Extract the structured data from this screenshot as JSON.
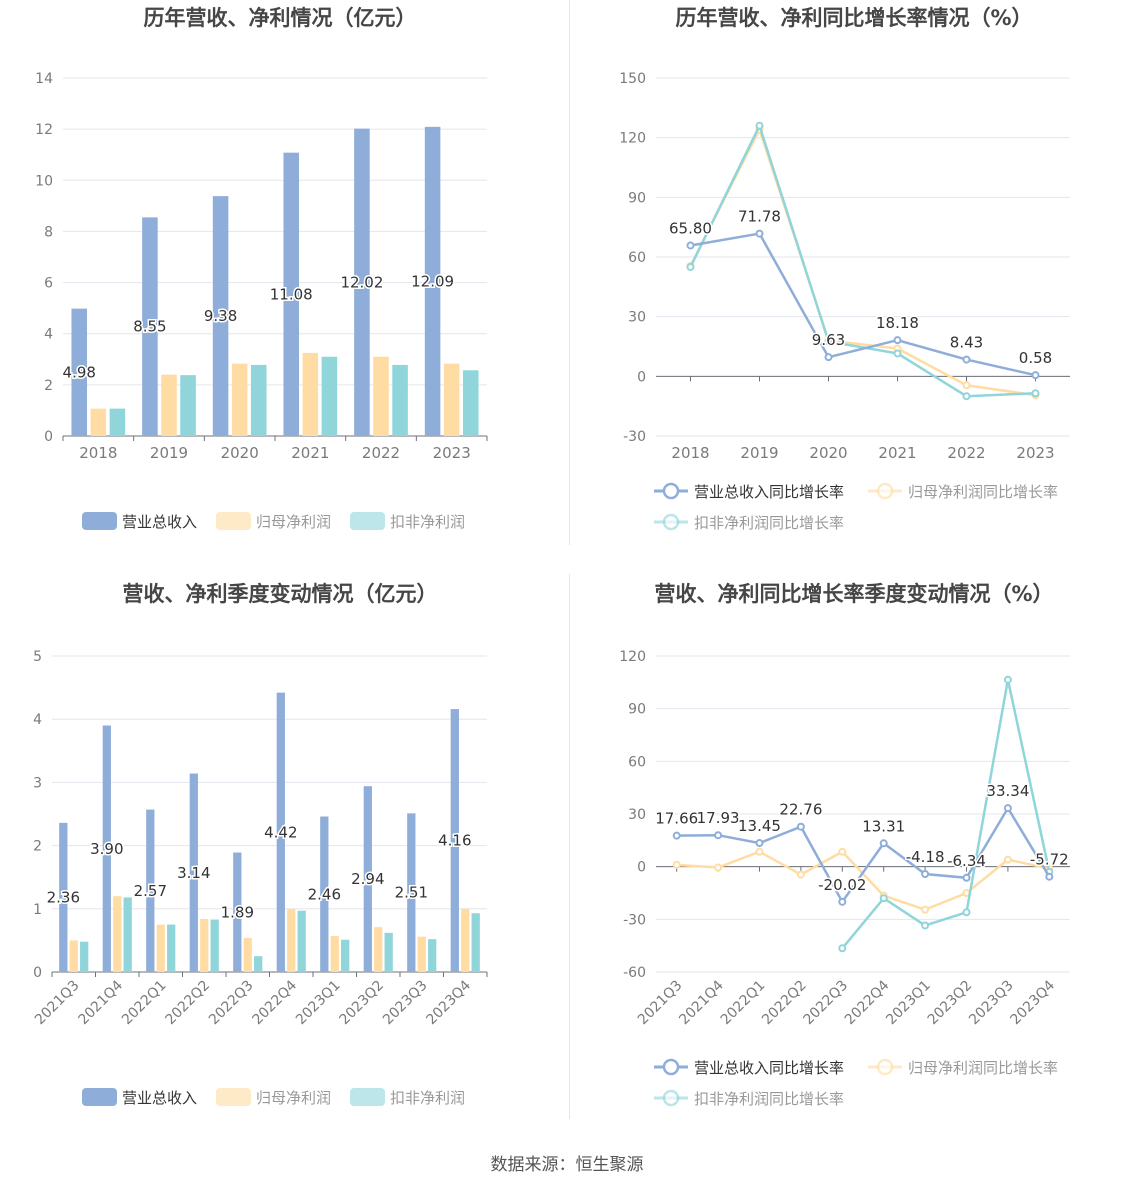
{
  "source": "数据来源：恒生聚源",
  "chart_data": [
    {
      "type": "bar",
      "title": "历年营收、净利情况（亿元）",
      "categories": [
        "2018",
        "2019",
        "2020",
        "2021",
        "2022",
        "2023"
      ],
      "ylim": [
        0,
        14
      ],
      "yticks": [
        0,
        2,
        4,
        6,
        8,
        10,
        12,
        14
      ],
      "series": [
        {
          "name": "营业总收入",
          "values": [
            4.98,
            8.55,
            9.38,
            11.08,
            12.02,
            12.09
          ],
          "labels": [
            "4.98",
            "8.55",
            "9.38",
            "11.08",
            "12.02",
            "12.09"
          ],
          "color": "#8eadd9"
        },
        {
          "name": "归母净利润",
          "values": [
            1.07,
            2.4,
            2.83,
            3.25,
            3.1,
            2.83
          ],
          "color": "#ffdca3"
        },
        {
          "name": "扣非净利润",
          "values": [
            1.07,
            2.38,
            2.78,
            3.1,
            2.78,
            2.57
          ],
          "color": "#8fd5da"
        }
      ]
    },
    {
      "type": "line",
      "title": "历年营收、净利同比增长率情况（%）",
      "categories": [
        "2018",
        "2019",
        "2020",
        "2021",
        "2022",
        "2023"
      ],
      "ylim": [
        -30,
        150
      ],
      "yticks": [
        -30,
        0,
        30,
        60,
        90,
        120,
        150
      ],
      "series": [
        {
          "name": "营业总收入同比增长率",
          "values": [
            65.8,
            71.78,
            9.63,
            18.18,
            8.43,
            0.58
          ],
          "labels": [
            "65.80",
            "71.78",
            "9.63",
            "18.18",
            "8.43",
            "0.58"
          ],
          "color": "#8eadd9"
        },
        {
          "name": "归母净利润同比增长率",
          "values": [
            55.5,
            124.0,
            18.0,
            14.0,
            -4.5,
            -9.5
          ],
          "color": "#ffdca3"
        },
        {
          "name": "扣非净利润同比增长率",
          "values": [
            55.0,
            126.0,
            17.5,
            11.5,
            -10.0,
            -8.5
          ],
          "color": "#8fd5da"
        }
      ]
    },
    {
      "type": "bar",
      "title": "营收、净利季度变动情况（亿元）",
      "categories": [
        "2021Q3",
        "2021Q4",
        "2022Q1",
        "2022Q2",
        "2022Q3",
        "2022Q4",
        "2023Q1",
        "2023Q2",
        "2023Q3",
        "2023Q4"
      ],
      "ylim": [
        0,
        5
      ],
      "yticks": [
        0,
        1,
        2,
        3,
        4,
        5
      ],
      "series": [
        {
          "name": "营业总收入",
          "values": [
            2.36,
            3.9,
            2.57,
            3.14,
            1.89,
            4.42,
            2.46,
            2.94,
            2.51,
            4.16
          ],
          "labels": [
            "2.36",
            "3.90",
            "2.57",
            "3.14",
            "1.89",
            "4.42",
            "2.46",
            "2.94",
            "2.51",
            "4.16"
          ],
          "color": "#8eadd9"
        },
        {
          "name": "归母净利润",
          "values": [
            0.5,
            1.2,
            0.75,
            0.84,
            0.54,
            1.0,
            0.57,
            0.71,
            0.56,
            1.0
          ],
          "color": "#ffdca3"
        },
        {
          "name": "扣非净利润",
          "values": [
            0.48,
            1.18,
            0.75,
            0.83,
            0.25,
            0.97,
            0.51,
            0.62,
            0.52,
            0.93
          ],
          "color": "#8fd5da"
        }
      ]
    },
    {
      "type": "line",
      "title": "营收、净利同比增长率季度变动情况（%）",
      "categories": [
        "2021Q3",
        "2021Q4",
        "2022Q1",
        "2022Q2",
        "2022Q3",
        "2022Q4",
        "2023Q1",
        "2023Q2",
        "2023Q3",
        "2023Q4"
      ],
      "ylim": [
        -60,
        120
      ],
      "yticks": [
        -60,
        -30,
        0,
        30,
        60,
        90,
        120
      ],
      "series": [
        {
          "name": "营业总收入同比增长率",
          "values": [
            17.66,
            17.93,
            13.45,
            22.76,
            -20.02,
            13.31,
            -4.18,
            -6.34,
            33.34,
            -5.72
          ],
          "labels": [
            "17.66",
            "17.93",
            "13.45",
            "22.76",
            "-20.02",
            "13.31",
            "-4.18",
            "-6.34",
            "33.34",
            "-5.72"
          ],
          "color": "#8eadd9"
        },
        {
          "name": "归母净利润同比增长率",
          "values": [
            1.0,
            -0.5,
            8.5,
            -4.5,
            8.5,
            -16.5,
            -24.5,
            -15.0,
            4.0,
            -1.0
          ],
          "color": "#ffdca3"
        },
        {
          "name": "扣非净利润同比增长率",
          "values": [
            null,
            null,
            null,
            null,
            -46.5,
            -18.0,
            -33.5,
            -26.0,
            106.5,
            -3.0
          ],
          "color": "#8fd5da"
        }
      ]
    }
  ]
}
